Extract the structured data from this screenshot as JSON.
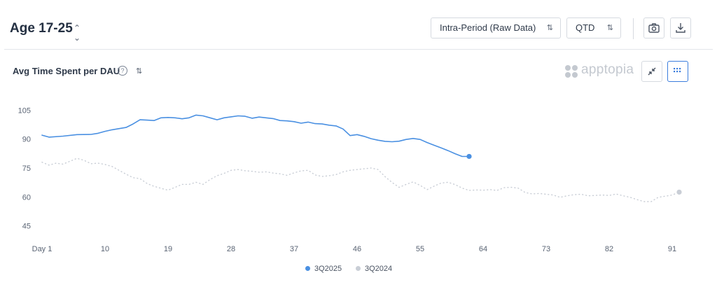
{
  "header": {
    "title": "Age 17-25",
    "period_select": "Intra-Period (Raw Data)",
    "range_select": "QTD",
    "camera_icon": "camera-icon",
    "download_icon": "download-icon"
  },
  "panel": {
    "metric_title": "Avg Time Spent per DAU",
    "help_glyph": "?",
    "brand": "apptopia",
    "collapse_icon": "collapse-icon",
    "grid_icon": "grid-icon"
  },
  "colors": {
    "series_2025": "#4a90e2",
    "series_2024": "#c9ced6",
    "accent": "#3b7ddd"
  },
  "chart_data": {
    "type": "line",
    "x_ticks": [
      1,
      10,
      19,
      28,
      37,
      46,
      55,
      64,
      73,
      82,
      91
    ],
    "x_tick_labels": [
      "Day 1",
      "10",
      "19",
      "28",
      "37",
      "46",
      "55",
      "64",
      "73",
      "82",
      "91"
    ],
    "y_ticks": [
      105,
      90,
      75,
      60,
      45
    ],
    "xlim": [
      1,
      92
    ],
    "ylim": [
      42,
      108
    ],
    "grid": false,
    "legend_position": "bottom-center",
    "series": [
      {
        "name": "3Q2025",
        "style": "solid",
        "x": [
          1,
          2,
          4,
          6,
          8,
          9,
          10,
          11,
          13,
          14,
          15,
          16,
          17,
          18,
          19,
          20,
          21,
          22,
          23,
          24,
          25,
          26,
          27,
          28,
          29,
          30,
          31,
          32,
          33,
          34,
          35,
          36,
          37,
          38,
          39,
          40,
          41,
          42,
          43,
          44,
          45,
          46,
          47,
          48,
          49,
          50,
          51,
          52,
          53,
          54,
          55,
          56,
          57,
          58,
          59,
          60,
          61,
          62
        ],
        "y": [
          92,
          91,
          91.5,
          92.3,
          92.4,
          93,
          94,
          94.8,
          96,
          97.8,
          100,
          99.8,
          99.6,
          101,
          101.2,
          101,
          100.5,
          101,
          102.4,
          102,
          101,
          100,
          101,
          101.5,
          102,
          101.8,
          100.8,
          101.4,
          101,
          100.6,
          99.6,
          99.4,
          99,
          98.2,
          98.8,
          98,
          97.8,
          97.2,
          96.8,
          95.2,
          91.8,
          92.3,
          91.4,
          90.2,
          89.4,
          88.8,
          88.6,
          88.9,
          89.8,
          90.3,
          89.8,
          88.2,
          86.8,
          85.4,
          84,
          82.4,
          81,
          81
        ]
      },
      {
        "name": "3Q2024",
        "style": "dotted",
        "x": [
          1,
          2,
          3,
          4,
          5,
          6,
          7,
          8,
          9,
          10,
          11,
          12,
          13,
          14,
          15,
          16,
          17,
          18,
          19,
          20,
          21,
          22,
          23,
          24,
          25,
          26,
          27,
          28,
          29,
          30,
          31,
          32,
          33,
          34,
          35,
          36,
          37,
          38,
          39,
          40,
          41,
          42,
          43,
          44,
          45,
          46,
          47,
          48,
          49,
          50,
          51,
          52,
          53,
          54,
          55,
          56,
          57,
          58,
          59,
          60,
          61,
          62,
          63,
          64,
          65,
          66,
          67,
          68,
          69,
          70,
          71,
          72,
          73,
          74,
          75,
          76,
          77,
          78,
          79,
          80,
          81,
          82,
          83,
          84,
          85,
          86,
          87,
          88,
          89,
          90,
          91,
          92
        ],
        "y": [
          78,
          76.5,
          77.5,
          77,
          78.5,
          80,
          79,
          77.2,
          77.5,
          76.8,
          75.8,
          73.8,
          71.8,
          70,
          69.5,
          67,
          65.5,
          64.5,
          63.5,
          65,
          66.5,
          66.5,
          67.6,
          66.5,
          69,
          71,
          72.2,
          73.8,
          74.2,
          73.6,
          73.3,
          72.8,
          73,
          72.4,
          72,
          71.2,
          72.5,
          73.5,
          73.8,
          71.4,
          70.6,
          71,
          71.6,
          73,
          73.8,
          74.2,
          74.6,
          75,
          74.2,
          70.5,
          67.5,
          65,
          66.5,
          67.8,
          66,
          63.8,
          65.6,
          67.2,
          67.6,
          66.4,
          64.6,
          63.4,
          63.6,
          63.5,
          63.8,
          63.4,
          64.8,
          65,
          64.6,
          62.3,
          61.6,
          61.8,
          61.4,
          61,
          59.8,
          60.6,
          61.2,
          61.4,
          60.6,
          60.8,
          61,
          60.8,
          61.5,
          60.6,
          59.8,
          58.6,
          57.6,
          57.6,
          59.8,
          60.4,
          61,
          62.5
        ]
      }
    ]
  }
}
